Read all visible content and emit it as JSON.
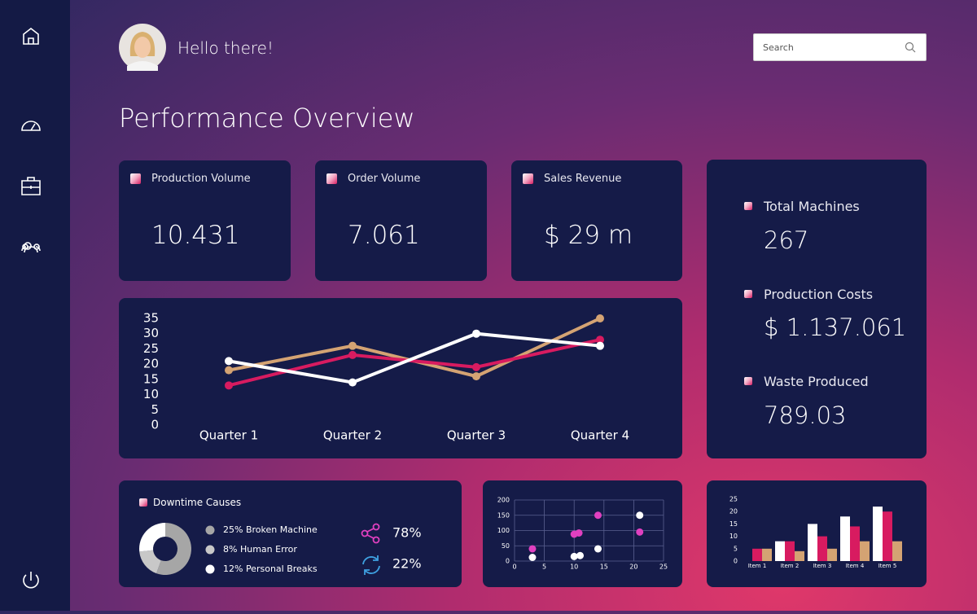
{
  "header": {
    "greeting": "Hello there!",
    "search_placeholder": "Search"
  },
  "title": "Performance Overview",
  "kpis": [
    {
      "label": "Production Volume",
      "value": "10.431"
    },
    {
      "label": "Order Volume",
      "value": "7.061"
    },
    {
      "label": "Sales Revenue",
      "value": "$ 29 m"
    }
  ],
  "side_stats": [
    {
      "label": "Total Machines",
      "value": "267"
    },
    {
      "label": "Production Costs",
      "value": "$ 1.137.061"
    },
    {
      "label": "Waste Produced",
      "value": "789.03"
    }
  ],
  "line_chart": {
    "type": "line",
    "categories": [
      "Quarter 1",
      "Quarter 2",
      "Quarter 3",
      "Quarter 4"
    ],
    "ylim": [
      0,
      35
    ],
    "yticks": [
      0,
      5,
      10,
      15,
      20,
      25,
      30,
      35
    ],
    "series": [
      {
        "color": "#d4a373",
        "values": [
          18,
          26,
          16,
          35
        ]
      },
      {
        "color": "#d81b60",
        "values": [
          13,
          23,
          19,
          28
        ]
      },
      {
        "color": "#ffffff",
        "values": [
          21,
          14,
          30,
          26
        ]
      }
    ]
  },
  "downtime": {
    "type": "pie",
    "title": "Downtime Causes",
    "items": [
      {
        "value": 25,
        "label": "25% Broken Machine",
        "color": "#a6a6a6"
      },
      {
        "value": 8,
        "label": "8% Human Error",
        "color": "#c8c8c8"
      },
      {
        "value": 12,
        "label": "12% Personal Breaks",
        "color": "#ffffff"
      }
    ],
    "metrics": [
      "78%",
      "22%"
    ]
  },
  "scatter": {
    "type": "scatter",
    "xlim": [
      0,
      25
    ],
    "xticks": [
      0,
      5,
      10,
      15,
      20,
      25
    ],
    "ylim": [
      0,
      200
    ],
    "yticks": [
      0,
      50,
      100,
      150,
      200
    ],
    "grid": true,
    "series": [
      {
        "color": "#e040c0",
        "x": [
          3,
          10,
          10.8,
          14,
          21
        ],
        "values": [
          40,
          88,
          92,
          150,
          95
        ]
      },
      {
        "color": "#ffffff",
        "x": [
          3,
          10,
          11,
          14,
          21
        ],
        "values": [
          12,
          15,
          18,
          40,
          150
        ]
      }
    ]
  },
  "bar_chart": {
    "type": "bar",
    "categories": [
      "Item 1",
      "Item 2",
      "Item 3",
      "Item 4",
      "Item 5"
    ],
    "ylim": [
      0,
      25
    ],
    "yticks": [
      0,
      5,
      10,
      15,
      20,
      25
    ],
    "series": [
      {
        "color": "#ffffff",
        "values": [
          0,
          8,
          15,
          18,
          22
        ]
      },
      {
        "color": "#d81b60",
        "values": [
          5,
          8,
          10,
          14,
          20
        ]
      },
      {
        "color": "#d4a373",
        "values": [
          5,
          4,
          5,
          8,
          8
        ]
      }
    ]
  }
}
